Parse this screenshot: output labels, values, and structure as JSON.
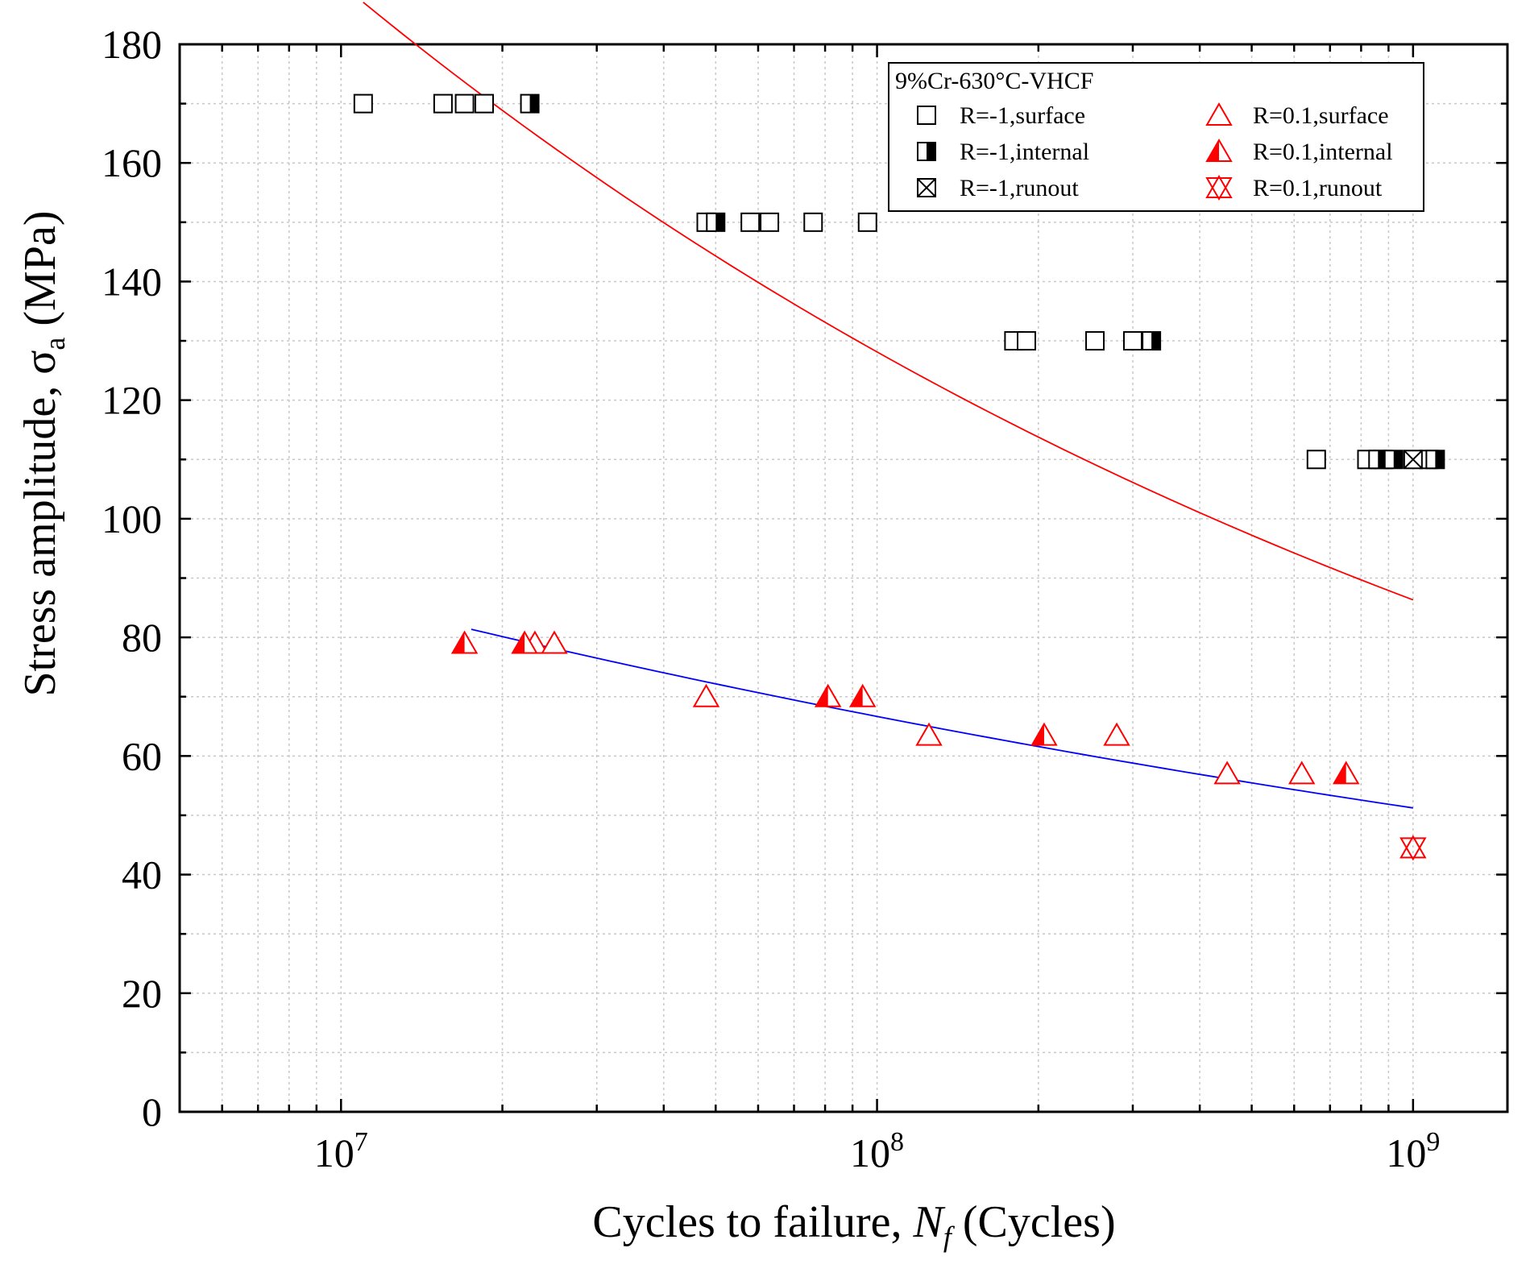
{
  "chart_data": {
    "type": "scatter",
    "title": "",
    "xlabel": "Cycles to failure, N_f (Cycles)",
    "xlabel_parts": {
      "pre": "Cycles to failure, ",
      "italic": "N",
      "sub": "f",
      "post": " (Cycles)"
    },
    "ylabel": "Stress amplitude, σa (MPa)",
    "ylabel_parts": {
      "pre": "Stress amplitude, σ",
      "sub": "a",
      "post": " (MPa)"
    },
    "xscale": "log",
    "xlim": [
      5000000,
      1500000000
    ],
    "ylim": [
      0,
      180
    ],
    "x_ticks": [
      {
        "value": 10000000,
        "base": "10",
        "exp": "7"
      },
      {
        "value": 100000000,
        "base": "10",
        "exp": "8"
      },
      {
        "value": 1000000000,
        "base": "10",
        "exp": "9"
      }
    ],
    "y_ticks": [
      0,
      20,
      40,
      60,
      80,
      100,
      120,
      140,
      160,
      180
    ],
    "grid": true,
    "legend": {
      "title": "9%Cr-630°C-VHCF",
      "placement": "top-right",
      "entries": [
        {
          "label": "R=-1,surface",
          "marker": "square-open",
          "color": "#000000"
        },
        {
          "label": "R=0.1,surface",
          "marker": "triangle-open",
          "color": "#ff0000"
        },
        {
          "label": "R=-1,internal",
          "marker": "square-half",
          "color": "#000000"
        },
        {
          "label": "R=0.1,internal",
          "marker": "triangle-half",
          "color": "#ff0000"
        },
        {
          "label": "R=-1,runout",
          "marker": "square-x",
          "color": "#000000"
        },
        {
          "label": "R=0.1,runout",
          "marker": "triangle-x",
          "color": "#ff0000"
        }
      ]
    },
    "series": [
      {
        "name": "R=-1,surface",
        "marker": "square-open",
        "color": "#000000",
        "points": [
          [
            11000000,
            170
          ],
          [
            15500000,
            170
          ],
          [
            17000000,
            170
          ],
          [
            18500000,
            170
          ],
          [
            48000000,
            150
          ],
          [
            58000000,
            150
          ],
          [
            63000000,
            150
          ],
          [
            76000000,
            150
          ],
          [
            96000000,
            150
          ],
          [
            180000000,
            130
          ],
          [
            190000000,
            130
          ],
          [
            255000000,
            130
          ],
          [
            300000000,
            130
          ],
          [
            660000000,
            110
          ],
          [
            820000000,
            110
          ],
          [
            880000000,
            110
          ],
          [
            1070000000,
            110
          ]
        ]
      },
      {
        "name": "R=-1,internal",
        "marker": "square-half",
        "color": "#000000",
        "points": [
          [
            22500000,
            170
          ],
          [
            50000000,
            150
          ],
          [
            325000000,
            130
          ],
          [
            860000000,
            110
          ],
          [
            920000000,
            110
          ],
          [
            1100000000,
            110
          ]
        ]
      },
      {
        "name": "R=-1,runout",
        "marker": "square-x",
        "color": "#000000",
        "points": [
          [
            1000000000,
            110
          ]
        ]
      },
      {
        "name": "R=0.1,surface",
        "marker": "triangle-open",
        "color": "#ff0000",
        "points": [
          [
            23000000,
            79
          ],
          [
            25000000,
            79
          ],
          [
            48000000,
            70
          ],
          [
            125000000,
            63.5
          ],
          [
            280000000,
            63.5
          ],
          [
            450000000,
            57
          ],
          [
            620000000,
            57
          ]
        ]
      },
      {
        "name": "R=0.1,internal",
        "marker": "triangle-half",
        "color": "#ff0000",
        "points": [
          [
            17000000,
            79
          ],
          [
            22000000,
            79
          ],
          [
            81000000,
            70
          ],
          [
            94000000,
            70
          ],
          [
            205000000,
            63.5
          ],
          [
            750000000,
            57
          ]
        ]
      },
      {
        "name": "R=0.1,runout",
        "marker": "triangle-x",
        "color": "#ff0000",
        "points": [
          [
            1000000000,
            44.5
          ]
        ]
      }
    ],
    "fit_lines": [
      {
        "name": "R=-1 fit",
        "color": "#ff0000",
        "a": 3017.5,
        "b": -0.1715,
        "x_range": [
          11000000,
          1000000000
        ]
      },
      {
        "name": "R=0.1 fit",
        "color": "#0000ff",
        "a": 547.4,
        "b": -0.1143,
        "x_range": [
          17500000,
          1000000000
        ]
      }
    ]
  }
}
